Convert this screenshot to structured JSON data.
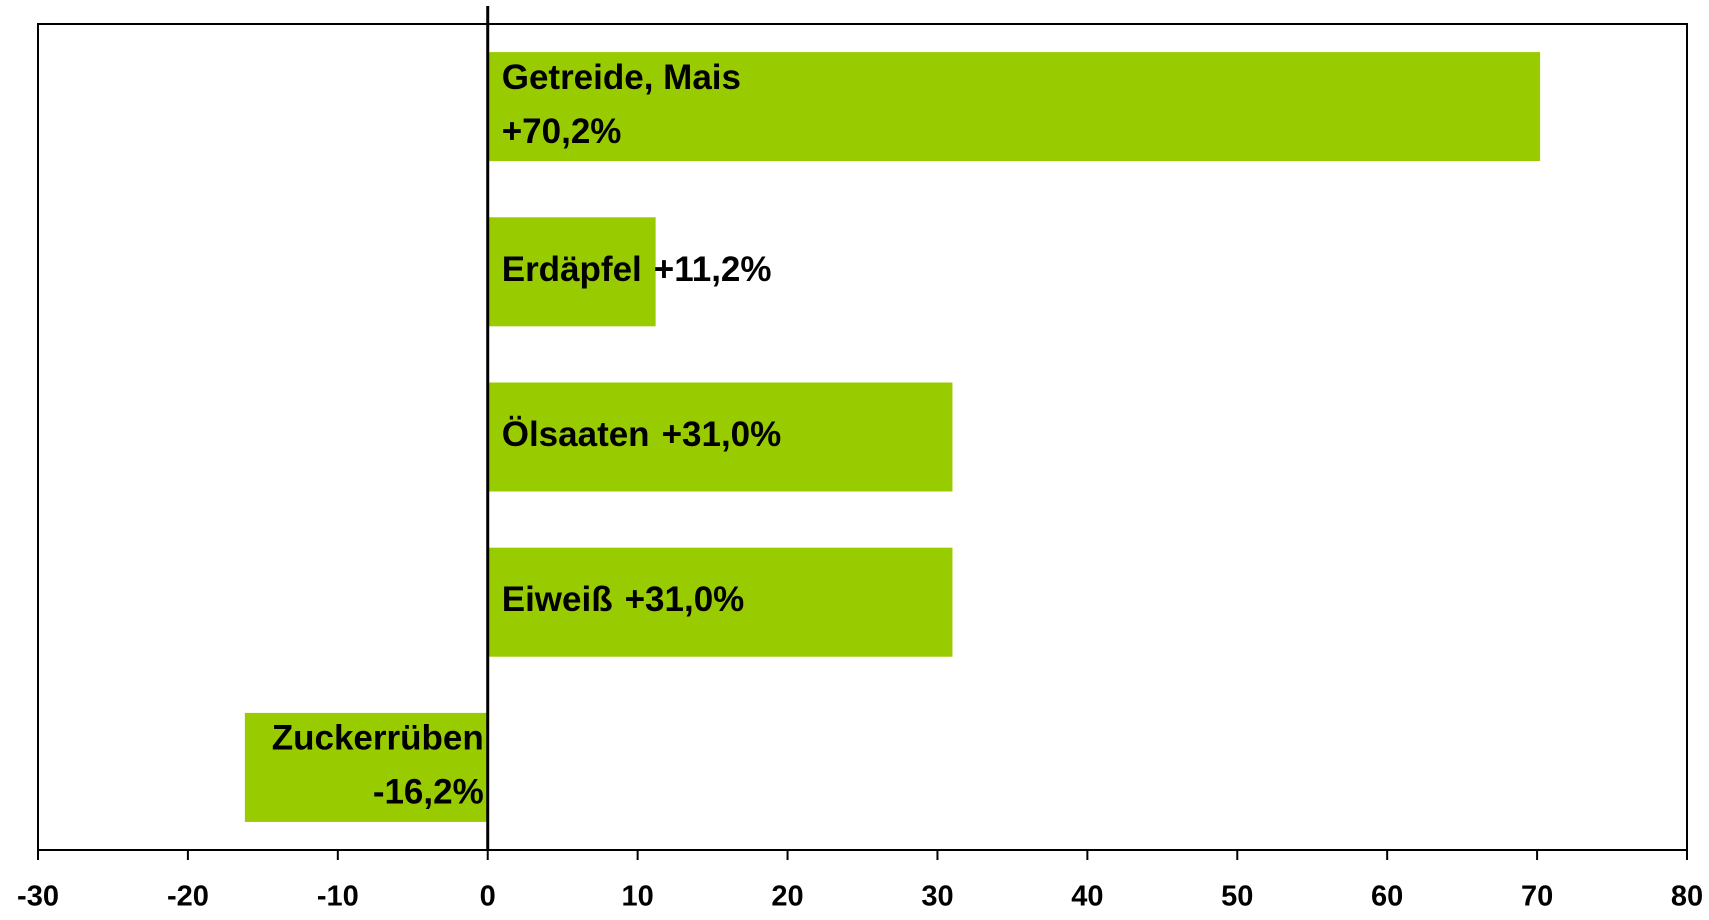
{
  "chart_data": {
    "type": "bar",
    "orientation": "horizontal",
    "categories": [
      "Getreide, Mais",
      "Erdäpfel",
      "Ölsaaten",
      "Eiweiß",
      "Zuckerrüben"
    ],
    "values": [
      70.2,
      11.2,
      31.0,
      31.0,
      -16.2
    ],
    "value_labels": [
      "+70,2%",
      "+11,2%",
      "+31,0%",
      "+31,0%",
      "-16,2%"
    ],
    "color": "#99cc00",
    "xlim": [
      -30,
      80
    ],
    "xticks": [
      -30,
      -20,
      -10,
      0,
      10,
      20,
      30,
      40,
      50,
      60,
      70,
      80
    ],
    "grid": false
  }
}
